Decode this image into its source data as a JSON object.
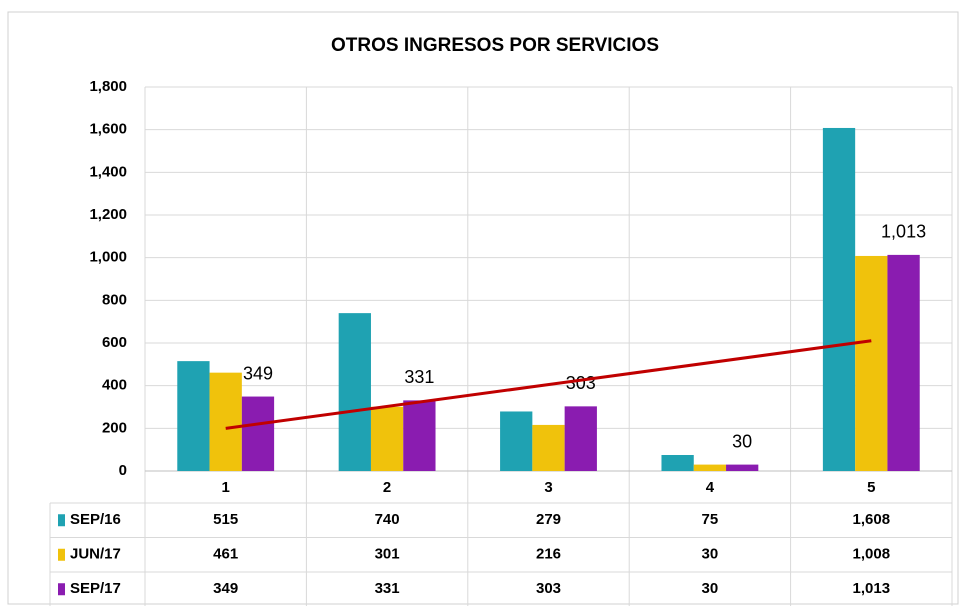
{
  "chart_data": {
    "type": "bar",
    "title": "OTROS INGRESOS POR SERVICIOS",
    "categories": [
      "1",
      "2",
      "3",
      "4",
      "5"
    ],
    "series": [
      {
        "name": "SEP/16",
        "color": "#1fa2b2",
        "values": [
          515,
          740,
          279,
          75,
          1608
        ],
        "value_labels": [
          "515",
          "740",
          "279",
          "75",
          "1,608"
        ]
      },
      {
        "name": "JUN/17",
        "color": "#f0c20c",
        "values": [
          461,
          301,
          216,
          30,
          1008
        ],
        "value_labels": [
          "461",
          "301",
          "216",
          "30",
          "1,008"
        ]
      },
      {
        "name": "SEP/17",
        "color": "#8a1cb0",
        "values": [
          349,
          331,
          303,
          30,
          1013
        ],
        "value_labels": [
          "349",
          "331",
          "303",
          "30",
          "1,013"
        ],
        "data_labels": true,
        "trendline": "linear",
        "trendline_color": "#c00000"
      }
    ],
    "ylim": [
      0,
      1800
    ],
    "yticks": [
      0,
      200,
      400,
      600,
      800,
      {
        "value": 1000,
        "label": "1,000"
      },
      {
        "value": 1200,
        "label": "1,200"
      },
      {
        "value": 1400,
        "label": "1,400"
      },
      {
        "value": 1600,
        "label": "1,600"
      },
      {
        "value": 1800,
        "label": "1,800"
      }
    ],
    "grid": true,
    "data_table": true
  }
}
